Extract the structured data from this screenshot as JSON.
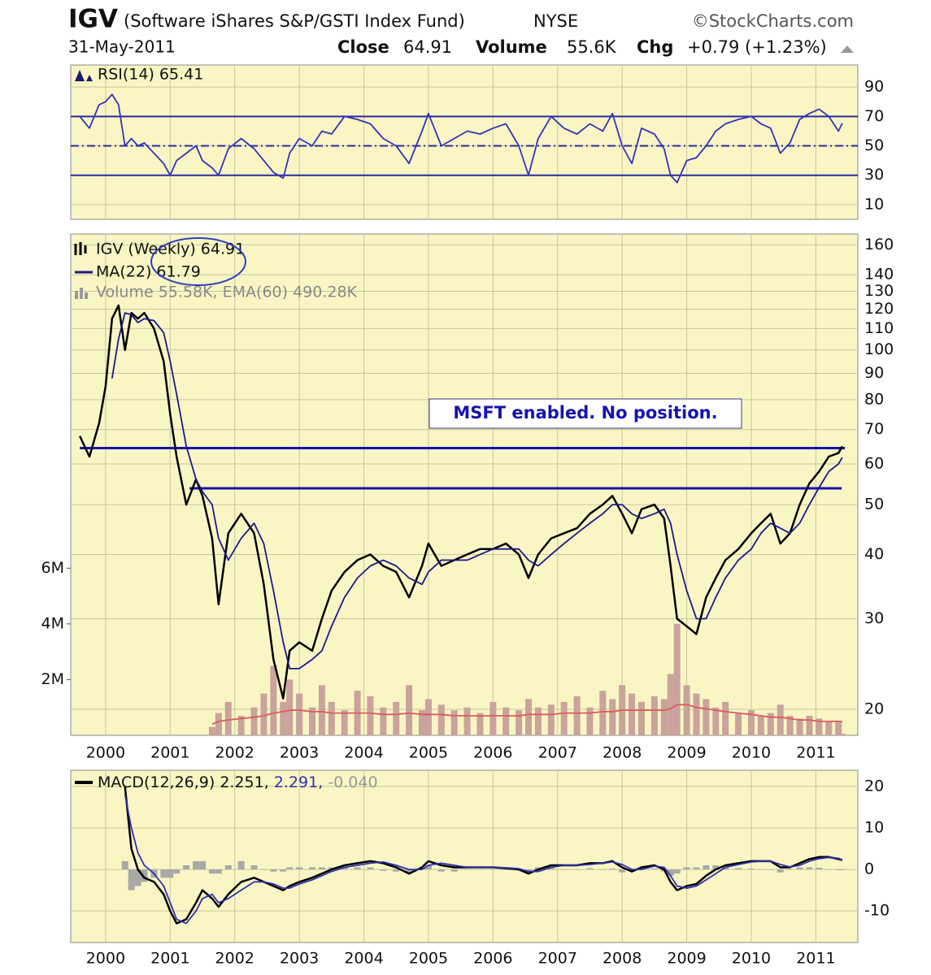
{
  "header": {
    "symbol": "IGV",
    "name": "(Software iShares S&P/GSTI Index Fund)",
    "exchange": "NYSE",
    "source": "©StockCharts.com",
    "date": "31-May-2011",
    "stats": [
      {
        "label": "Close",
        "value": "64.91"
      },
      {
        "label": "Volume",
        "value": "55.6K"
      },
      {
        "label": "Chg",
        "value": "+0.79 (+1.23%)"
      }
    ]
  },
  "chart_data": [
    {
      "type": "line",
      "xlim": [
        1999.46,
        2011.65
      ],
      "xticks": [
        2000,
        2001,
        2002,
        2003,
        2004,
        2005,
        2006,
        2007,
        2008,
        2009,
        2010,
        2011
      ],
      "xtick_labels": false,
      "ylim": [
        0,
        105
      ],
      "yticks": [
        10,
        30,
        50,
        70,
        90
      ],
      "grid": true,
      "hline_color": "#2a2aa0",
      "hlines": [
        {
          "y": 70
        },
        {
          "y": 50,
          "dash": true
        },
        {
          "y": 30
        }
      ],
      "x": [
        1999.6,
        1999.75,
        1999.9,
        2000.0,
        2000.1,
        2000.2,
        2000.3,
        2000.4,
        2000.5,
        2000.6,
        2000.75,
        2000.9,
        2001.0,
        2001.1,
        2001.25,
        2001.4,
        2001.5,
        2001.65,
        2001.75,
        2001.9,
        2002.1,
        2002.3,
        2002.45,
        2002.6,
        2002.75,
        2002.85,
        2003.0,
        2003.2,
        2003.35,
        2003.5,
        2003.7,
        2003.9,
        2004.1,
        2004.3,
        2004.5,
        2004.7,
        2004.9,
        2005.0,
        2005.2,
        2005.4,
        2005.6,
        2005.8,
        2006.0,
        2006.2,
        2006.4,
        2006.55,
        2006.7,
        2006.9,
        2007.1,
        2007.3,
        2007.5,
        2007.7,
        2007.85,
        2008.0,
        2008.15,
        2008.3,
        2008.5,
        2008.65,
        2008.75,
        2008.85,
        2009.0,
        2009.15,
        2009.3,
        2009.45,
        2009.6,
        2009.8,
        2010.0,
        2010.15,
        2010.3,
        2010.45,
        2010.6,
        2010.75,
        2010.9,
        2011.05,
        2011.2,
        2011.35,
        2011.41
      ],
      "series": [
        {
          "name": "RSI(14) 65.41",
          "color": "#3333bb",
          "values": [
            70,
            62,
            78,
            80,
            85,
            78,
            50,
            55,
            50,
            52,
            45,
            38,
            30,
            40,
            45,
            50,
            40,
            35,
            30,
            48,
            55,
            48,
            40,
            32,
            28,
            45,
            55,
            50,
            60,
            58,
            70,
            68,
            65,
            55,
            50,
            38,
            60,
            72,
            50,
            55,
            60,
            58,
            62,
            65,
            50,
            30,
            55,
            70,
            62,
            58,
            65,
            60,
            72,
            50,
            38,
            62,
            58,
            48,
            30,
            25,
            40,
            42,
            50,
            60,
            65,
            68,
            70,
            65,
            62,
            45,
            52,
            68,
            72,
            75,
            70,
            60,
            65.41
          ]
        }
      ]
    },
    {
      "type": "line",
      "log": true,
      "xlim": [
        1999.46,
        2011.65
      ],
      "xticks": [
        2000,
        2001,
        2002,
        2003,
        2004,
        2005,
        2006,
        2007,
        2008,
        2009,
        2010,
        2011
      ],
      "xtick_labels": true,
      "ylim": [
        17.8,
        168
      ],
      "yticks": [
        20,
        30,
        40,
        50,
        60,
        70,
        80,
        90,
        100,
        110,
        120,
        130,
        140,
        160
      ],
      "grid": true,
      "y2lim": [
        0,
        18000000
      ],
      "y2ticks": [
        {
          "value": 2000000,
          "label": "2M"
        },
        {
          "value": 4000000,
          "label": "4M"
        },
        {
          "value": 6000000,
          "label": "6M"
        }
      ],
      "annotation": "MSFT enabled. No position.",
      "hline_color": "#1414a8",
      "hlines": [
        {
          "y": 64.4,
          "x": [
            1999.6,
            2011.45
          ]
        },
        {
          "y": 53.8,
          "x": [
            2001.3,
            2011.4
          ]
        }
      ],
      "x": [
        1999.6,
        1999.75,
        1999.9,
        2000.0,
        2000.1,
        2000.2,
        2000.3,
        2000.4,
        2000.5,
        2000.6,
        2000.75,
        2000.9,
        2001.0,
        2001.1,
        2001.25,
        2001.4,
        2001.5,
        2001.65,
        2001.75,
        2001.9,
        2002.1,
        2002.3,
        2002.45,
        2002.6,
        2002.75,
        2002.85,
        2003.0,
        2003.2,
        2003.35,
        2003.5,
        2003.7,
        2003.9,
        2004.1,
        2004.3,
        2004.5,
        2004.7,
        2004.9,
        2005.0,
        2005.2,
        2005.4,
        2005.6,
        2005.8,
        2006.0,
        2006.2,
        2006.4,
        2006.55,
        2006.7,
        2006.9,
        2007.1,
        2007.3,
        2007.5,
        2007.7,
        2007.85,
        2008.0,
        2008.15,
        2008.3,
        2008.5,
        2008.65,
        2008.75,
        2008.85,
        2009.0,
        2009.15,
        2009.3,
        2009.45,
        2009.6,
        2009.8,
        2010.0,
        2010.15,
        2010.3,
        2010.45,
        2010.6,
        2010.75,
        2010.9,
        2011.05,
        2011.2,
        2011.35,
        2011.41
      ],
      "series": [
        {
          "name": "IGV (Weekly) 64.91",
          "color": "#000000",
          "values": [
            68,
            62,
            72,
            85,
            115,
            122,
            100,
            118,
            115,
            118,
            110,
            95,
            75,
            62,
            50,
            56,
            52,
            43,
            32,
            44,
            48,
            44,
            35,
            25,
            21,
            26,
            27,
            26,
            30,
            34,
            37,
            39,
            40,
            38,
            37,
            33,
            38,
            42,
            38,
            39,
            40,
            41,
            41,
            42,
            40,
            36,
            40,
            43,
            44,
            45,
            48,
            50,
            52,
            48,
            44,
            49,
            50,
            47,
            38,
            30,
            29,
            28,
            33,
            36,
            39,
            41,
            44,
            46,
            48,
            42,
            44,
            50,
            55,
            58,
            62,
            63,
            64.91
          ]
        },
        {
          "name": "MA(22) 61.79",
          "color": "#1a1a8c",
          "values": [
            null,
            null,
            null,
            null,
            88,
            105,
            118,
            117,
            113,
            115,
            114,
            108,
            95,
            82,
            65,
            56,
            53,
            50,
            43,
            39,
            43,
            46,
            42,
            34,
            27,
            24,
            24,
            25,
            26,
            29,
            33,
            36,
            38,
            39,
            38,
            36,
            35,
            37,
            39,
            39,
            39,
            40,
            41,
            41,
            41,
            39,
            38,
            40,
            42,
            44,
            46,
            48,
            50,
            50,
            48,
            47,
            48,
            49,
            46,
            40,
            34,
            30,
            30,
            33,
            36,
            39,
            41,
            44,
            46,
            45,
            44,
            46,
            50,
            54,
            58,
            60,
            61.79
          ]
        },
        {
          "name": "Volume 55.58K, EMA(60) 490.28K",
          "type": "bar",
          "axis": "y2",
          "color": "#c9a39c",
          "values": [
            null,
            null,
            null,
            null,
            null,
            null,
            null,
            null,
            null,
            null,
            null,
            null,
            null,
            null,
            null,
            null,
            null,
            300000,
            800000,
            1200000,
            700000,
            1000000,
            1500000,
            2500000,
            1200000,
            2000000,
            1500000,
            1000000,
            1800000,
            1200000,
            900000,
            1600000,
            1400000,
            1000000,
            1200000,
            1800000,
            900000,
            1300000,
            1100000,
            900000,
            1000000,
            800000,
            1200000,
            1000000,
            900000,
            1300000,
            1000000,
            1100000,
            1200000,
            1400000,
            1000000,
            1600000,
            1300000,
            1800000,
            1500000,
            1200000,
            1400000,
            1300000,
            2200000,
            4000000,
            1800000,
            1500000,
            1300000,
            1000000,
            1200000,
            800000,
            900000,
            700000,
            800000,
            1100000,
            700000,
            600000,
            700000,
            600000,
            500000,
            500000,
            55580
          ]
        },
        {
          "axis": "y2",
          "color": "#e05a5a",
          "values": [
            null,
            null,
            null,
            null,
            null,
            null,
            null,
            null,
            null,
            null,
            null,
            null,
            null,
            null,
            null,
            null,
            null,
            400000,
            500000,
            550000,
            600000,
            650000,
            700000,
            800000,
            850000,
            900000,
            900000,
            850000,
            850000,
            800000,
            800000,
            800000,
            800000,
            750000,
            750000,
            800000,
            750000,
            750000,
            750000,
            700000,
            700000,
            700000,
            700000,
            700000,
            700000,
            750000,
            750000,
            750000,
            800000,
            800000,
            800000,
            850000,
            850000,
            900000,
            900000,
            900000,
            900000,
            900000,
            950000,
            1100000,
            1100000,
            1000000,
            950000,
            900000,
            850000,
            800000,
            750000,
            700000,
            650000,
            650000,
            600000,
            550000,
            550000,
            500000,
            500000,
            500000,
            490280
          ]
        }
      ]
    },
    {
      "type": "line",
      "xlim": [
        1999.46,
        2011.65
      ],
      "xticks": [
        2000,
        2001,
        2002,
        2003,
        2004,
        2005,
        2006,
        2007,
        2008,
        2009,
        2010,
        2011
      ],
      "xtick_labels": true,
      "ylim": [
        -17.6,
        23.9
      ],
      "yticks": [
        -10,
        0,
        10,
        20
      ],
      "grid": true,
      "x": [
        1999.6,
        1999.75,
        1999.9,
        2000.0,
        2000.1,
        2000.2,
        2000.3,
        2000.4,
        2000.5,
        2000.6,
        2000.75,
        2000.9,
        2001.0,
        2001.1,
        2001.25,
        2001.4,
        2001.5,
        2001.65,
        2001.75,
        2001.9,
        2002.1,
        2002.3,
        2002.45,
        2002.6,
        2002.75,
        2002.85,
        2003.0,
        2003.2,
        2003.35,
        2003.5,
        2003.7,
        2003.9,
        2004.1,
        2004.3,
        2004.5,
        2004.7,
        2004.9,
        2005.0,
        2005.2,
        2005.4,
        2005.6,
        2005.8,
        2006.0,
        2006.2,
        2006.4,
        2006.55,
        2006.7,
        2006.9,
        2007.1,
        2007.3,
        2007.5,
        2007.7,
        2007.85,
        2008.0,
        2008.15,
        2008.3,
        2008.5,
        2008.65,
        2008.75,
        2008.85,
        2009.0,
        2009.15,
        2009.3,
        2009.45,
        2009.6,
        2009.8,
        2010.0,
        2010.15,
        2010.3,
        2010.45,
        2010.6,
        2010.75,
        2010.9,
        2011.05,
        2011.2,
        2011.35,
        2011.41
      ],
      "series": [
        {
          "name": "MACD(12,26,9) 2.251,",
          "color": "#000000",
          "values": [
            null,
            null,
            null,
            null,
            null,
            null,
            20,
            5,
            0,
            -2,
            -3,
            -6,
            -10,
            -13,
            -12,
            -8,
            -5,
            -7,
            -9,
            -6,
            -3,
            -2,
            -3,
            -4,
            -5,
            -4,
            -3,
            -2,
            -1,
            0,
            1,
            1.5,
            2,
            1.5,
            0.5,
            -1,
            0.5,
            2,
            1,
            0.5,
            0.5,
            0.5,
            0.5,
            0.3,
            0,
            -1,
            0,
            1,
            1,
            1,
            1.5,
            1.5,
            2,
            0.5,
            -0.5,
            0.5,
            1,
            0,
            -3,
            -5,
            -4,
            -3.5,
            -1.5,
            0,
            1,
            1.5,
            2,
            2,
            2,
            0.5,
            0.5,
            1.5,
            2.5,
            3,
            3,
            2.5,
            2.251
          ]
        },
        {
          "name": "2.291,",
          "color": "#3030b0",
          "values": [
            null,
            null,
            null,
            null,
            null,
            null,
            18,
            10,
            4,
            1,
            -1,
            -4,
            -8,
            -12,
            -13,
            -10,
            -7,
            -6,
            -8,
            -7,
            -5,
            -3,
            -3,
            -3.5,
            -4.5,
            -4.5,
            -3.5,
            -2.5,
            -1.5,
            -0.5,
            0.5,
            1,
            1.5,
            1.8,
            1,
            0,
            0,
            1,
            1.5,
            1,
            0.5,
            0.5,
            0.5,
            0.4,
            0.2,
            -0.5,
            -0.5,
            0.5,
            1,
            1,
            1.2,
            1.5,
            1.8,
            1.2,
            0,
            0,
            0.8,
            0.5,
            -1.5,
            -4,
            -4.5,
            -4,
            -2.5,
            -1,
            0.5,
            1.2,
            1.8,
            2,
            2,
            1.2,
            0.6,
            1,
            2,
            2.6,
            2.9,
            2.7,
            2.291
          ]
        },
        {
          "name": "-0.040",
          "type": "bar",
          "color": "#a8a8a8",
          "values": [
            null,
            null,
            null,
            null,
            null,
            null,
            2,
            -5,
            -4,
            -3,
            -2,
            -2,
            -2,
            -1,
            1,
            2,
            2,
            -1,
            -1,
            1,
            2,
            1,
            0,
            -0.5,
            -0.5,
            0.5,
            0.5,
            0.5,
            0.5,
            0.5,
            0.5,
            0.5,
            0.5,
            -0.3,
            -0.5,
            -1,
            0.5,
            1,
            -0.5,
            -0.5,
            0,
            0,
            0,
            -0.1,
            -0.2,
            -0.5,
            0.5,
            0.5,
            0,
            0,
            0.3,
            0,
            0.2,
            -0.7,
            -0.5,
            0.5,
            0.2,
            -0.5,
            -1.5,
            -1,
            0.5,
            0.5,
            1,
            1,
            0.5,
            0.3,
            0.2,
            0,
            0,
            -0.7,
            -0.1,
            0.5,
            0.5,
            0.4,
            0.1,
            -0.2,
            -0.04
          ]
        }
      ]
    }
  ]
}
